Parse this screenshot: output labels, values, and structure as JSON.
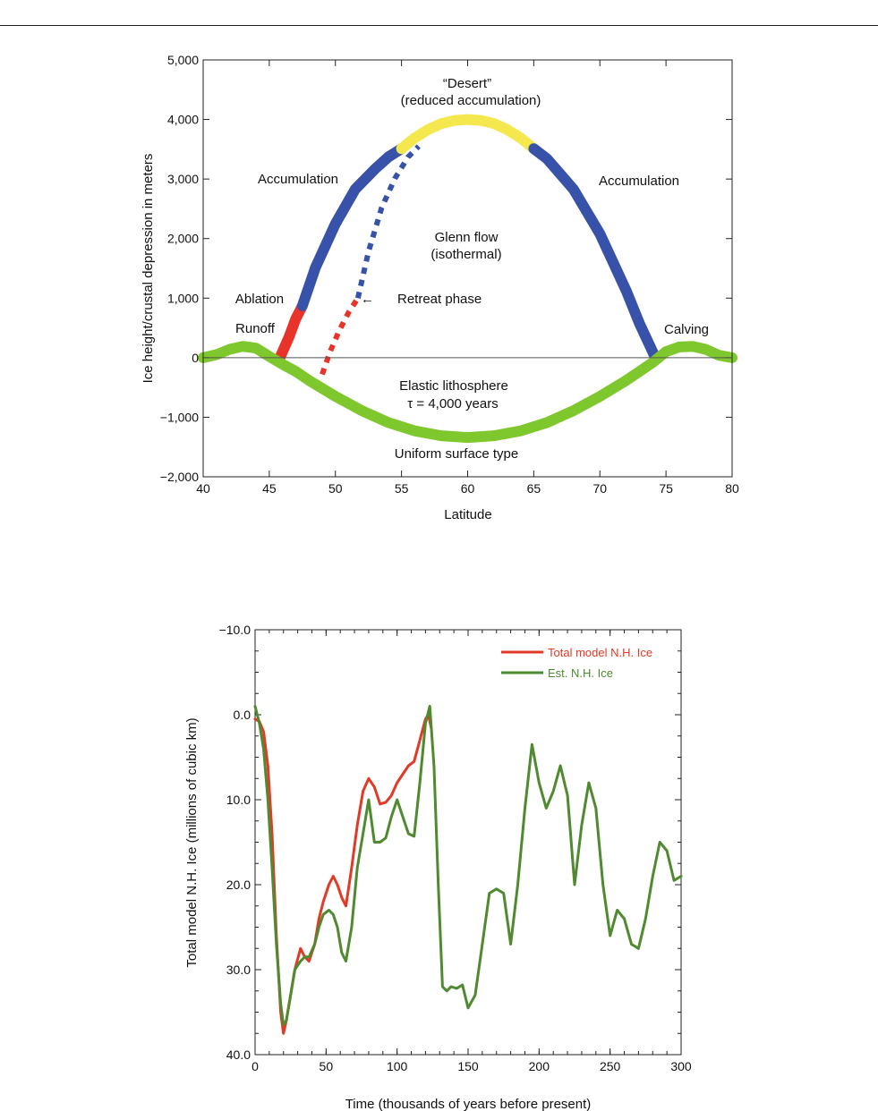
{
  "chart_data": [
    {
      "type": "line",
      "xlabel": "Latitude",
      "ylabel": "Ice height/crustal depression in meters",
      "xlim": [
        40,
        80
      ],
      "ylim": [
        -2000,
        5000
      ],
      "x_ticks": [
        40,
        45,
        50,
        55,
        60,
        65,
        70,
        75,
        80
      ],
      "x_tick_labels": [
        "40",
        "45",
        "50",
        "55",
        "60",
        "65",
        "70",
        "75",
        "80"
      ],
      "y_ticks": [
        -2000,
        -1000,
        0,
        1000,
        2000,
        3000,
        4000,
        5000
      ],
      "y_tick_labels": [
        "−2,000",
        "−1,000",
        "0",
        "1,000",
        "2,000",
        "3,000",
        "4,000",
        "5,000"
      ],
      "grid": false,
      "series": [
        {
          "color": "#e8332a",
          "style": "thick",
          "x": [
            45.8,
            46.5,
            47.0,
            47.5
          ],
          "y": [
            0,
            350,
            650,
            870
          ]
        },
        {
          "color": "#3752a8",
          "style": "thick",
          "x": [
            47.5,
            48.5,
            50,
            51.5,
            53,
            54,
            55
          ],
          "y": [
            870,
            1520,
            2250,
            2830,
            3170,
            3370,
            3510
          ]
        },
        {
          "color": "#f5e84e",
          "style": "thick",
          "x": [
            55,
            56,
            57,
            58,
            59,
            60,
            61,
            62,
            63,
            64,
            65
          ],
          "y": [
            3510,
            3690,
            3830,
            3930,
            3985,
            4000,
            3985,
            3930,
            3830,
            3690,
            3510
          ]
        },
        {
          "color": "#3752a8",
          "style": "thick",
          "x": [
            65,
            66,
            68,
            70,
            72,
            73,
            74.2
          ],
          "y": [
            3510,
            3340,
            2830,
            2080,
            1120,
            570,
            0
          ]
        },
        {
          "color": "#3752a8",
          "style": "dashed",
          "x": [
            51.7,
            52.5,
            53.5,
            54.5,
            55.5,
            56.3
          ],
          "y": [
            1000,
            1780,
            2520,
            3010,
            3370,
            3550
          ]
        },
        {
          "color": "#e8332a",
          "style": "dashed",
          "x": [
            49.0,
            49.6,
            50.3,
            51.0,
            51.7
          ],
          "y": [
            -280,
            100,
            460,
            760,
            1000
          ]
        },
        {
          "color": "#7ec82e",
          "style": "thick",
          "x": [
            40,
            41,
            42,
            43,
            44,
            45,
            46,
            47,
            48,
            50,
            52,
            54,
            56,
            58,
            60,
            62,
            64,
            66,
            68,
            70,
            72,
            73,
            74,
            75,
            76,
            77,
            78,
            79,
            80
          ],
          "y": [
            0,
            50,
            140,
            190,
            160,
            20,
            -110,
            -230,
            -380,
            -650,
            -890,
            -1090,
            -1230,
            -1310,
            -1340,
            -1310,
            -1230,
            -1090,
            -890,
            -650,
            -380,
            -230,
            -80,
            100,
            180,
            190,
            140,
            40,
            0
          ]
        }
      ],
      "annotations": {
        "desert": "“Desert”",
        "desert_sub": "(reduced accumulation)",
        "accumulation_left": "Accumulation",
        "accumulation_right": "Accumulation",
        "glenn": "Glenn flow",
        "glenn_sub": "(isothermal)",
        "ablation": "Ablation",
        "runoff": "Runoff",
        "retreat": "Retreat phase",
        "calving": "Calving",
        "elastic": "Elastic lithosphere",
        "tau": "τ = 4,000 years",
        "uniform": "Uniform surface type"
      }
    },
    {
      "type": "line",
      "xlabel": "Time (thousands of years before present)",
      "ylabel": "Total model N.H. Ice (millions of cubic km)",
      "xlim": [
        0,
        300
      ],
      "ylim": [
        -10,
        40
      ],
      "y_inverted": true,
      "x_ticks": [
        0,
        50,
        100,
        150,
        200,
        250,
        300
      ],
      "x_tick_labels": [
        "0",
        "50",
        "100",
        "150",
        "200",
        "250",
        "300"
      ],
      "y_ticks": [
        -10,
        0,
        10,
        20,
        30,
        40
      ],
      "y_tick_labels": [
        "−10.0",
        "0.0",
        "10.0",
        "20.0",
        "30.0",
        "40.0"
      ],
      "grid": false,
      "legend_position": "top-right",
      "series": [
        {
          "name": "Total model N.H. Ice",
          "color": "#e23a26",
          "x": [
            0,
            3,
            6,
            9,
            12,
            15,
            18,
            20,
            22,
            25,
            28,
            32,
            35,
            38,
            42,
            45,
            48,
            52,
            55,
            58,
            61,
            64,
            68,
            72,
            76,
            80,
            84,
            88,
            92,
            96,
            100,
            104,
            108,
            112,
            116,
            120,
            122,
            124
          ],
          "y": [
            0.5,
            0.8,
            2,
            6,
            14,
            26,
            35,
            37.5,
            36,
            33,
            30,
            27.5,
            28.5,
            29,
            27,
            24,
            22,
            20,
            19,
            20,
            21.5,
            22.5,
            18,
            13,
            9,
            7.5,
            8.5,
            10.5,
            10.3,
            9.5,
            8,
            7,
            6,
            5.5,
            3,
            0.5,
            0,
            1.5
          ]
        },
        {
          "name": "Est. N.H. Ice",
          "color": "#4f8a30",
          "x": [
            0,
            3,
            6,
            9,
            12,
            15,
            18,
            20,
            22,
            25,
            28,
            32,
            35,
            38,
            42,
            45,
            48,
            52,
            55,
            58,
            61,
            64,
            68,
            72,
            76,
            80,
            84,
            88,
            92,
            96,
            100,
            104,
            108,
            112,
            116,
            120,
            123,
            126,
            129,
            132,
            135,
            138,
            142,
            146,
            150,
            155,
            160,
            165,
            170,
            175,
            180,
            185,
            190,
            195,
            200,
            205,
            210,
            215,
            220,
            225,
            230,
            235,
            240,
            245,
            250,
            255,
            260,
            265,
            270,
            275,
            280,
            285,
            290,
            295,
            300
          ],
          "y": [
            -1,
            1,
            4,
            10,
            18,
            27,
            34,
            36.5,
            36,
            33,
            30,
            29,
            28.5,
            28.5,
            27,
            25,
            23.5,
            23,
            23.5,
            25,
            28,
            29,
            25,
            18,
            14,
            10,
            15,
            15,
            14.5,
            12,
            10,
            12,
            14,
            14.3,
            8,
            1,
            -1,
            6,
            20,
            32,
            32.5,
            32,
            32.2,
            31.8,
            34.5,
            33,
            27,
            21,
            20.5,
            21,
            27,
            20,
            11,
            3.5,
            8,
            11,
            9,
            6,
            9.5,
            20,
            13,
            8,
            11,
            20,
            26,
            23,
            24,
            27,
            27.5,
            24,
            19,
            15,
            16,
            19.5,
            19
          ]
        }
      ]
    }
  ]
}
